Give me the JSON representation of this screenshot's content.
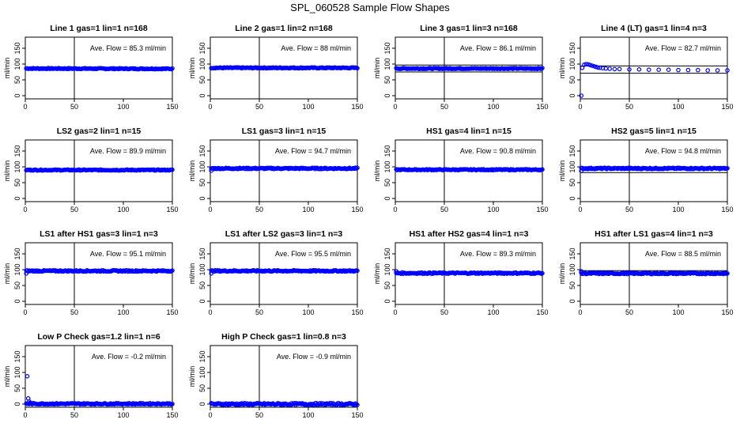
{
  "figure": {
    "title": "SPL_060528  Sample Flow Shapes"
  },
  "chart_data": [
    {
      "type": "scatter",
      "title": "Line 1 gas=1 lin=1 n=168",
      "ylabel": "ml/min",
      "annotation": "Ave. Flow =  85.3  ml/min",
      "xlim": [
        0,
        150
      ],
      "ylim": [
        -10,
        185
      ],
      "xticks": [
        0,
        50,
        100,
        150
      ],
      "yticks": [
        0,
        50,
        100,
        150
      ],
      "vline": 50,
      "hlines": [],
      "mean": 85.3,
      "color": "#0000ff",
      "series": [
        {
          "x": [
            1,
            150
          ],
          "y": [
            86,
            85
          ],
          "kind": "band",
          "jitter": 1.5
        }
      ]
    },
    {
      "type": "scatter",
      "title": "Line 2 gas=1 lin=2 n=168",
      "ylabel": "ml/min",
      "annotation": "Ave. Flow =  88  ml/min",
      "xlim": [
        0,
        150
      ],
      "ylim": [
        -10,
        185
      ],
      "xticks": [
        0,
        50,
        100,
        150
      ],
      "yticks": [
        0,
        50,
        100,
        150
      ],
      "vline": 50,
      "hlines": [],
      "mean": 88,
      "color": "#0000ff",
      "series": [
        {
          "x": [
            1,
            150
          ],
          "y": [
            88,
            88
          ],
          "kind": "band",
          "jitter": 1.5
        }
      ]
    },
    {
      "type": "scatter",
      "title": "Line 3 gas=1 lin=3 n=168",
      "ylabel": "ml/min",
      "annotation": "Ave. Flow =  86.1  ml/min",
      "xlim": [
        0,
        150
      ],
      "ylim": [
        -10,
        185
      ],
      "xticks": [
        0,
        50,
        100,
        150
      ],
      "yticks": [
        0,
        50,
        100,
        150
      ],
      "vline": 50,
      "hlines": [
        97,
        75
      ],
      "mean": 86.1,
      "color": "#0000ff",
      "series": [
        {
          "x": [
            1,
            150
          ],
          "y": [
            86,
            86
          ],
          "kind": "band",
          "jitter": 1.5
        }
      ]
    },
    {
      "type": "scatter",
      "title": "Line 4 (LT) gas=1 lin=4 n=3",
      "ylabel": "ml/min",
      "annotation": "Ave. Flow =  82.7  ml/min",
      "xlim": [
        0,
        150
      ],
      "ylim": [
        -10,
        185
      ],
      "xticks": [
        0,
        50,
        100,
        150
      ],
      "yticks": [
        0,
        50,
        100,
        150
      ],
      "vline": 50,
      "hlines": [
        94,
        71
      ],
      "mean": 82.7,
      "color": "#0000ff",
      "series": [
        {
          "x": [
            1,
            2,
            4,
            6,
            8,
            10,
            12,
            14,
            16,
            18,
            20,
            23,
            26,
            30,
            35,
            40,
            50,
            60,
            70,
            80,
            90,
            100,
            110,
            120,
            130,
            140,
            150
          ],
          "y": [
            0,
            88,
            98,
            100,
            99,
            97,
            95,
            93,
            91,
            89,
            88,
            87,
            86,
            85,
            84,
            84,
            83,
            83,
            82,
            82,
            82,
            81,
            81,
            81,
            80,
            80,
            80
          ],
          "kind": "points"
        }
      ]
    },
    {
      "type": "scatter",
      "title": "LS2 gas=2 lin=1 n=15",
      "ylabel": "ml/min",
      "annotation": "Ave. Flow =  89.9  ml/min",
      "xlim": [
        0,
        150
      ],
      "ylim": [
        -10,
        185
      ],
      "xticks": [
        0,
        50,
        100,
        150
      ],
      "yticks": [
        0,
        50,
        100,
        150
      ],
      "vline": 50,
      "hlines": [],
      "mean": 89.9,
      "color": "#0000ff",
      "series": [
        {
          "x": [
            1,
            150
          ],
          "y": [
            90,
            90
          ],
          "kind": "band",
          "jitter": 1.5
        }
      ]
    },
    {
      "type": "scatter",
      "title": "LS1 gas=3 lin=1 n=15",
      "ylabel": "ml/min",
      "annotation": "Ave. Flow =  94.7  ml/min",
      "xlim": [
        0,
        150
      ],
      "ylim": [
        -10,
        185
      ],
      "xticks": [
        0,
        50,
        100,
        150
      ],
      "yticks": [
        0,
        50,
        100,
        150
      ],
      "vline": 50,
      "hlines": [
        100
      ],
      "mean": 94.7,
      "color": "#0000ff",
      "series": [
        {
          "x": [
            1,
            150
          ],
          "y": [
            95,
            95
          ],
          "kind": "band",
          "jitter": 2,
          "start": [
            1,
            88
          ]
        }
      ]
    },
    {
      "type": "scatter",
      "title": "HS1 gas=4 lin=1 n=15",
      "ylabel": "ml/min",
      "annotation": "Ave. Flow =  90.8  ml/min",
      "xlim": [
        0,
        150
      ],
      "ylim": [
        -10,
        185
      ],
      "xticks": [
        0,
        50,
        100,
        150
      ],
      "yticks": [
        0,
        50,
        100,
        150
      ],
      "vline": 50,
      "hlines": [],
      "mean": 90.8,
      "color": "#0000ff",
      "series": [
        {
          "x": [
            1,
            150
          ],
          "y": [
            91,
            91
          ],
          "kind": "band",
          "jitter": 1.5
        }
      ]
    },
    {
      "type": "scatter",
      "title": "HS2 gas=5 lin=1 n=15",
      "ylabel": "ml/min",
      "annotation": "Ave. Flow =  94.8  ml/min",
      "xlim": [
        0,
        150
      ],
      "ylim": [
        -10,
        185
      ],
      "xticks": [
        0,
        50,
        100,
        150
      ],
      "yticks": [
        0,
        50,
        100,
        150
      ],
      "vline": 50,
      "hlines": [
        100,
        82
      ],
      "mean": 94.8,
      "color": "#0000ff",
      "series": [
        {
          "x": [
            1,
            150
          ],
          "y": [
            95,
            95
          ],
          "kind": "band",
          "jitter": 2,
          "start": [
            1,
            87
          ]
        }
      ]
    },
    {
      "type": "scatter",
      "title": "LS1 after HS1 gas=3 lin=1 n=3",
      "ylabel": "ml/min",
      "annotation": "Ave. Flow =  95.1  ml/min",
      "xlim": [
        0,
        150
      ],
      "ylim": [
        -10,
        185
      ],
      "xticks": [
        0,
        50,
        100,
        150
      ],
      "yticks": [
        0,
        50,
        100,
        150
      ],
      "vline": 50,
      "hlines": [],
      "mean": 95.1,
      "color": "#0000ff",
      "series": [
        {
          "x": [
            1,
            150
          ],
          "y": [
            96,
            96
          ],
          "kind": "band",
          "jitter": 2,
          "start": [
            1,
            88
          ]
        }
      ]
    },
    {
      "type": "scatter",
      "title": "LS1 after LS2 gas=3 lin=1 n=3",
      "ylabel": "ml/min",
      "annotation": "Ave. Flow =  95.5  ml/min",
      "xlim": [
        0,
        150
      ],
      "ylim": [
        -10,
        185
      ],
      "xticks": [
        0,
        50,
        100,
        150
      ],
      "yticks": [
        0,
        50,
        100,
        150
      ],
      "vline": 50,
      "hlines": [
        100
      ],
      "mean": 95.5,
      "color": "#0000ff",
      "series": [
        {
          "x": [
            1,
            150
          ],
          "y": [
            96,
            96
          ],
          "kind": "band",
          "jitter": 2,
          "start": [
            1,
            88
          ]
        }
      ]
    },
    {
      "type": "scatter",
      "title": "HS1 after HS2 gas=4 lin=1 n=3",
      "ylabel": "ml/min",
      "annotation": "Ave. Flow =  89.3  ml/min",
      "xlim": [
        0,
        150
      ],
      "ylim": [
        -10,
        185
      ],
      "xticks": [
        0,
        50,
        100,
        150
      ],
      "yticks": [
        0,
        50,
        100,
        150
      ],
      "vline": 50,
      "hlines": [],
      "mean": 89.3,
      "color": "#0000ff",
      "series": [
        {
          "x": [
            1,
            150
          ],
          "y": [
            89,
            89
          ],
          "kind": "band",
          "jitter": 2,
          "start": [
            1,
            95
          ]
        }
      ]
    },
    {
      "type": "scatter",
      "title": "HS1 after LS1 gas=4 lin=1 n=3",
      "ylabel": "ml/min",
      "annotation": "Ave. Flow =  88.5  ml/min",
      "xlim": [
        0,
        150
      ],
      "ylim": [
        -10,
        185
      ],
      "xticks": [
        0,
        50,
        100,
        150
      ],
      "yticks": [
        0,
        50,
        100,
        150
      ],
      "vline": 50,
      "hlines": [
        97
      ],
      "mean": 88.5,
      "color": "#0000ff",
      "series": [
        {
          "x": [
            1,
            150
          ],
          "y": [
            88,
            88
          ],
          "kind": "band",
          "jitter": 2,
          "start": [
            1,
            95
          ]
        }
      ]
    },
    {
      "type": "scatter",
      "title": "Low P Check gas=1.2 lin=1 n=6",
      "ylabel": "ml/min",
      "annotation": "Ave. Flow =  -0.2  ml/min",
      "xlim": [
        0,
        150
      ],
      "ylim": [
        -10,
        185
      ],
      "xticks": [
        0,
        50,
        100,
        150
      ],
      "yticks": [
        0,
        50,
        100,
        150
      ],
      "vline": 50,
      "hlines": [
        -2
      ],
      "mean": -0.2,
      "color": "#0000ff",
      "series": [
        {
          "x": [
            1,
            150
          ],
          "y": [
            1,
            1
          ],
          "kind": "band",
          "jitter": 2,
          "start": [
            2,
            88
          ],
          "extra": [
            [
              3,
              18
            ],
            [
              4,
              8
            ],
            [
              5,
              4
            ]
          ]
        }
      ]
    },
    {
      "type": "scatter",
      "title": "High P Check gas=1 lin=0.8 n=3",
      "ylabel": "ml/min",
      "annotation": "Ave. Flow =  -0.9  ml/min",
      "xlim": [
        0,
        150
      ],
      "ylim": [
        -10,
        185
      ],
      "xticks": [
        0,
        50,
        100,
        150
      ],
      "yticks": [
        0,
        50,
        100,
        150
      ],
      "vline": 50,
      "hlines": [
        -4
      ],
      "mean": -0.9,
      "color": "#0000ff",
      "series": [
        {
          "x": [
            1,
            150
          ],
          "y": [
            0,
            0
          ],
          "kind": "band",
          "jitter": 3
        }
      ]
    }
  ]
}
